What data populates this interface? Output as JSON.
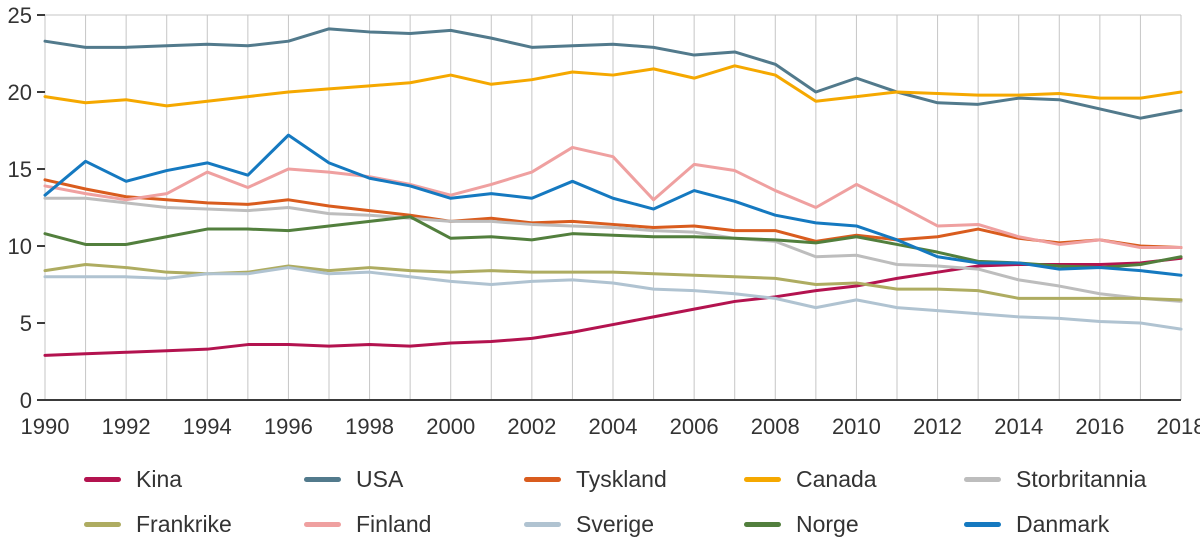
{
  "colors": {
    "background": "#ffffff",
    "grid": "#c6c6c6",
    "axis": "#3a3a3a",
    "text": "#333333"
  },
  "chart_data": {
    "type": "line",
    "title": "",
    "xlabel": "",
    "ylabel": "",
    "x": [
      1990,
      1991,
      1992,
      1993,
      1994,
      1995,
      1996,
      1997,
      1998,
      1999,
      2000,
      2001,
      2002,
      2003,
      2004,
      2005,
      2006,
      2007,
      2008,
      2009,
      2010,
      2011,
      2012,
      2013,
      2014,
      2015,
      2016,
      2017,
      2018
    ],
    "xticks": [
      1990,
      1992,
      1994,
      1996,
      1998,
      2000,
      2002,
      2004,
      2006,
      2008,
      2010,
      2012,
      2014,
      2016,
      2018
    ],
    "ylim": [
      0,
      25
    ],
    "yticks": [
      0,
      5,
      10,
      15,
      20,
      25
    ],
    "grid": "vertical",
    "legend_position": "bottom",
    "series": [
      {
        "name": "Kina",
        "color": "#b3134f",
        "values": [
          2.9,
          3.0,
          3.1,
          3.2,
          3.3,
          3.6,
          3.6,
          3.5,
          3.6,
          3.5,
          3.7,
          3.8,
          4.0,
          4.4,
          4.9,
          5.4,
          5.9,
          6.4,
          6.7,
          7.1,
          7.4,
          7.9,
          8.3,
          8.7,
          8.8,
          8.8,
          8.8,
          8.9,
          9.2
        ]
      },
      {
        "name": "USA",
        "color": "#527a8c",
        "values": [
          23.3,
          22.9,
          22.9,
          23.0,
          23.1,
          23.0,
          23.3,
          24.1,
          23.9,
          23.8,
          24.0,
          23.5,
          22.9,
          23.0,
          23.1,
          22.9,
          22.4,
          22.6,
          21.8,
          20.0,
          20.9,
          20.0,
          19.3,
          19.2,
          19.6,
          19.5,
          18.9,
          18.3,
          18.8
        ]
      },
      {
        "name": "Tyskland",
        "color": "#d95c1e",
        "values": [
          14.3,
          13.7,
          13.2,
          13.0,
          12.8,
          12.7,
          13.0,
          12.6,
          12.3,
          12.0,
          11.6,
          11.8,
          11.5,
          11.6,
          11.4,
          11.2,
          11.3,
          11.0,
          11.0,
          10.3,
          10.7,
          10.4,
          10.6,
          11.1,
          10.5,
          10.2,
          10.4,
          10.0,
          9.9
        ]
      },
      {
        "name": "Canada",
        "color": "#f5a800",
        "values": [
          19.7,
          19.3,
          19.5,
          19.1,
          19.4,
          19.7,
          20.0,
          20.2,
          20.4,
          20.6,
          21.1,
          20.5,
          20.8,
          21.3,
          21.1,
          21.5,
          20.9,
          21.7,
          21.1,
          19.4,
          19.7,
          20.0,
          19.9,
          19.8,
          19.8,
          19.9,
          19.6,
          19.6,
          20.0
        ]
      },
      {
        "name": "Storbritannia",
        "color": "#bdbdbd",
        "values": [
          13.1,
          13.1,
          12.8,
          12.5,
          12.4,
          12.3,
          12.5,
          12.1,
          12.0,
          11.8,
          11.6,
          11.6,
          11.4,
          11.3,
          11.2,
          11.0,
          10.9,
          10.5,
          10.3,
          9.3,
          9.4,
          8.8,
          8.7,
          8.5,
          7.8,
          7.4,
          6.9,
          6.6,
          6.4
        ]
      },
      {
        "name": "Frankrike",
        "color": "#aeac61",
        "values": [
          8.4,
          8.8,
          8.6,
          8.3,
          8.2,
          8.3,
          8.7,
          8.4,
          8.6,
          8.4,
          8.3,
          8.4,
          8.3,
          8.3,
          8.3,
          8.2,
          8.1,
          8.0,
          7.9,
          7.5,
          7.6,
          7.2,
          7.2,
          7.1,
          6.6,
          6.6,
          6.6,
          6.6,
          6.5
        ]
      },
      {
        "name": "Finland",
        "color": "#efa0a0",
        "values": [
          13.9,
          13.4,
          13.0,
          13.4,
          14.8,
          13.8,
          15.0,
          14.8,
          14.5,
          14.0,
          13.3,
          14.0,
          14.8,
          16.4,
          15.8,
          13.0,
          15.3,
          14.9,
          13.6,
          12.5,
          14.0,
          12.7,
          11.3,
          11.4,
          10.6,
          10.1,
          10.4,
          9.9,
          9.9
        ]
      },
      {
        "name": "Sverige",
        "color": "#b0c3d1",
        "values": [
          8.0,
          8.0,
          8.0,
          7.9,
          8.2,
          8.2,
          8.6,
          8.2,
          8.3,
          8.0,
          7.7,
          7.5,
          7.7,
          7.8,
          7.6,
          7.2,
          7.1,
          6.9,
          6.6,
          6.0,
          6.5,
          6.0,
          5.8,
          5.6,
          5.4,
          5.3,
          5.1,
          5.0,
          4.6
        ]
      },
      {
        "name": "Norge",
        "color": "#527f3d",
        "values": [
          10.8,
          10.1,
          10.1,
          10.6,
          11.1,
          11.1,
          11.0,
          11.3,
          11.6,
          11.9,
          10.5,
          10.6,
          10.4,
          10.8,
          10.7,
          10.6,
          10.6,
          10.5,
          10.4,
          10.2,
          10.6,
          10.1,
          9.6,
          9.0,
          8.9,
          8.7,
          8.6,
          8.8,
          9.3
        ]
      },
      {
        "name": "Danmark",
        "color": "#1579c0",
        "values": [
          13.3,
          15.5,
          14.2,
          14.9,
          15.4,
          14.6,
          17.2,
          15.4,
          14.4,
          13.9,
          13.1,
          13.4,
          13.1,
          14.2,
          13.1,
          12.4,
          13.6,
          12.9,
          12.0,
          11.5,
          11.3,
          10.4,
          9.3,
          8.9,
          8.9,
          8.5,
          8.6,
          8.4,
          8.1
        ]
      }
    ]
  }
}
